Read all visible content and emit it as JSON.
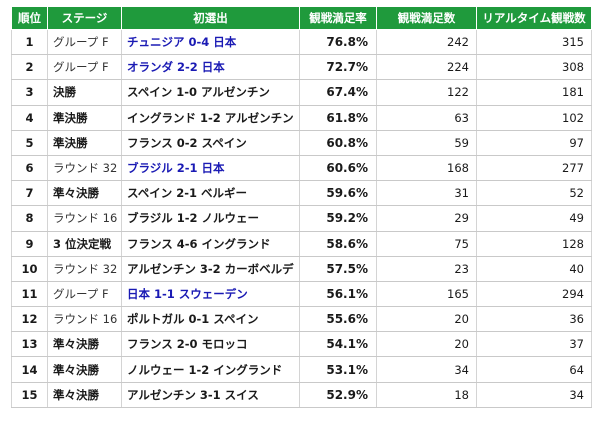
{
  "table": {
    "headers": [
      "順位",
      "ステージ",
      "初選出",
      "観戦満足率",
      "観戦満足数",
      "リアルタイム観戦数"
    ],
    "rows": [
      {
        "rank": "1",
        "stage": "グループ F",
        "stage_type": "group",
        "match": "チュニジア 0-4 日本",
        "japan": true,
        "rate": "76.8%",
        "satisfied": "242",
        "realtime": "315"
      },
      {
        "rank": "2",
        "stage": "グループ F",
        "stage_type": "group",
        "match": "オランダ 2-2 日本",
        "japan": true,
        "rate": "72.7%",
        "satisfied": "224",
        "realtime": "308"
      },
      {
        "rank": "3",
        "stage": "決勝",
        "stage_type": "knock",
        "match": "スペイン 1-0 アルゼンチン",
        "japan": false,
        "rate": "67.4%",
        "satisfied": "122",
        "realtime": "181"
      },
      {
        "rank": "4",
        "stage": "準決勝",
        "stage_type": "knock",
        "match": "イングランド 1-2 アルゼンチン",
        "japan": false,
        "rate": "61.8%",
        "satisfied": "63",
        "realtime": "102"
      },
      {
        "rank": "5",
        "stage": "準決勝",
        "stage_type": "knock",
        "match": "フランス 0-2 スペイン",
        "japan": false,
        "rate": "60.8%",
        "satisfied": "59",
        "realtime": "97"
      },
      {
        "rank": "6",
        "stage": "ラウンド 32",
        "stage_type": "group",
        "match": "ブラジル 2-1 日本",
        "japan": true,
        "rate": "60.6%",
        "satisfied": "168",
        "realtime": "277"
      },
      {
        "rank": "7",
        "stage": "準々決勝",
        "stage_type": "knock",
        "match": "スペイン 2-1 ベルギー",
        "japan": false,
        "rate": "59.6%",
        "satisfied": "31",
        "realtime": "52"
      },
      {
        "rank": "8",
        "stage": "ラウンド 16",
        "stage_type": "group",
        "match": "ブラジル 1-2 ノルウェー",
        "japan": false,
        "rate": "59.2%",
        "satisfied": "29",
        "realtime": "49"
      },
      {
        "rank": "9",
        "stage": "3 位決定戦",
        "stage_type": "knock",
        "match": "フランス 4-6 イングランド",
        "japan": false,
        "rate": "58.6%",
        "satisfied": "75",
        "realtime": "128"
      },
      {
        "rank": "10",
        "stage": "ラウンド 32",
        "stage_type": "group",
        "match": "アルゼンチン 3-2 カーボベルデ",
        "japan": false,
        "rate": "57.5%",
        "satisfied": "23",
        "realtime": "40"
      },
      {
        "rank": "11",
        "stage": "グループ F",
        "stage_type": "group",
        "match": "日本 1-1 スウェーデン",
        "japan": true,
        "rate": "56.1%",
        "satisfied": "165",
        "realtime": "294"
      },
      {
        "rank": "12",
        "stage": "ラウンド 16",
        "stage_type": "group",
        "match": "ポルトガル 0-1 スペイン",
        "japan": false,
        "rate": "55.6%",
        "satisfied": "20",
        "realtime": "36"
      },
      {
        "rank": "13",
        "stage": "準々決勝",
        "stage_type": "knock",
        "match": "フランス 2-0 モロッコ",
        "japan": false,
        "rate": "54.1%",
        "satisfied": "20",
        "realtime": "37"
      },
      {
        "rank": "14",
        "stage": "準々決勝",
        "stage_type": "knock",
        "match": "ノルウェー 1-2 イングランド",
        "japan": false,
        "rate": "53.1%",
        "satisfied": "34",
        "realtime": "64"
      },
      {
        "rank": "15",
        "stage": "準々決勝",
        "stage_type": "knock",
        "match": "アルゼンチン 3-1 スイス",
        "japan": false,
        "rate": "52.9%",
        "satisfied": "18",
        "realtime": "34"
      }
    ]
  },
  "colors": {
    "header_bg": "#1f9a3c",
    "japan_match": "#1a1ab4"
  }
}
